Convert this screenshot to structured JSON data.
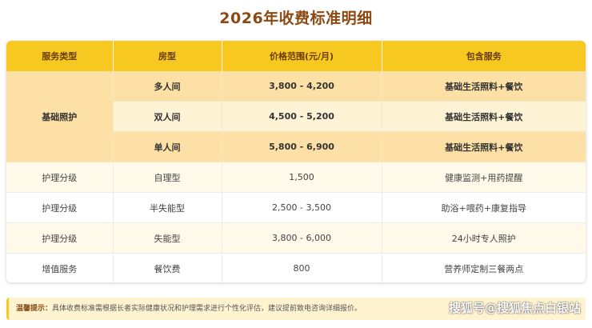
{
  "title": "2026年收费标准明细",
  "table": {
    "headers": [
      "服务类型",
      "房型",
      "价格范围(元/月)",
      "包含服务"
    ],
    "group_label": "基础照护",
    "group_rows": [
      {
        "room": "多人间",
        "price": "3,800 - 4,200",
        "service": "基础生活照料+餐饮"
      },
      {
        "room": "双人间",
        "price": "4,500 - 5,200",
        "service": "基础生活照料+餐饮"
      },
      {
        "room": "单人间",
        "price": "5,800 - 6,900",
        "service": "基础生活照料+餐饮"
      }
    ],
    "rows": [
      {
        "type": "护理分级",
        "room": "自理型",
        "price": "1,500",
        "service": "健康监测+用药提醒"
      },
      {
        "type": "护理分级",
        "room": "半失能型",
        "price": "2,500 - 3,500",
        "service": "助浴+喂药+康复指导"
      },
      {
        "type": "护理分级",
        "room": "失能型",
        "price": "3,800 - 6,000",
        "service": "24小时专人照护"
      },
      {
        "type": "增值服务",
        "room": "餐饮费",
        "price": "800",
        "service": "营养师定制三餐两点"
      }
    ]
  },
  "note": {
    "label": "温馨提示：",
    "text": "具体收费标准需根据长者实际健康状况和护理需求进行个性化评估，建议提前致电咨询详细报价。"
  },
  "watermark": "搜狐号@搜狐焦点白银站",
  "colors": {
    "header": "#f7c81f",
    "title": "#8a4a12",
    "highlight": "#fde0a5"
  }
}
